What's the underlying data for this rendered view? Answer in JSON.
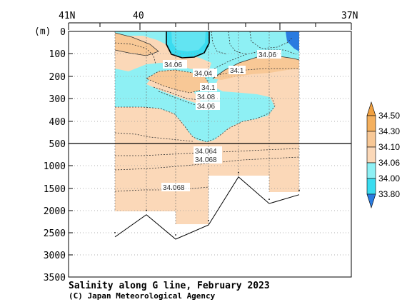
{
  "chart_data": {
    "type": "heatmap",
    "title": "Salinity along G line, February 2023",
    "credit": "(C) Japan Meteorological Agency",
    "yunit": "(m)",
    "x_ticks": [
      "41N",
      "40",
      "37N"
    ],
    "y_ticks_upper": [
      0,
      100,
      200,
      300,
      400,
      500
    ],
    "y_ticks_lower": [
      1000,
      1500,
      2000,
      2500,
      3000,
      3500
    ],
    "ylim": [
      0,
      3500
    ],
    "y_break_depth": 500,
    "colorbar": {
      "levels": [
        "34.50",
        "34.30",
        "34.10",
        "34.06",
        "34.00",
        "33.80"
      ],
      "colors": [
        "#f4b05e",
        "#f8c896",
        "#fbd8b8",
        "#8ef0f4",
        "#3adcf0",
        "#2a7be0"
      ]
    },
    "contour_labels": [
      "34.06",
      "34.04",
      "34.1",
      "34.08",
      "34.06",
      "34.06",
      "34.1",
      "34.064",
      "34.068",
      "34.068"
    ],
    "seafloor_depth_m": [
      2600,
      2100,
      2650,
      2330,
      1250,
      1850,
      1650
    ]
  }
}
